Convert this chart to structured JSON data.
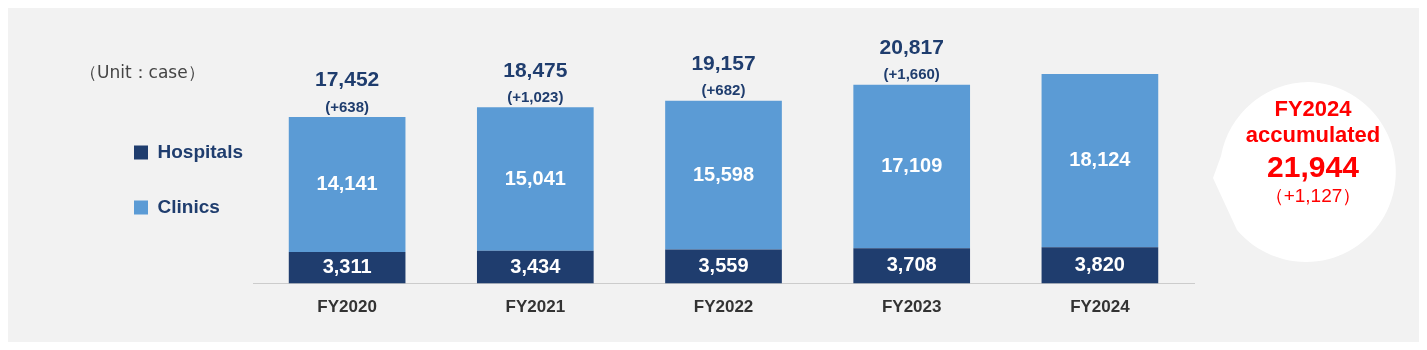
{
  "chart_data": {
    "type": "bar",
    "subtitle": "（Unit：case）",
    "categories": [
      "FY2020",
      "FY2021",
      "FY2022",
      "FY2023",
      "FY2024"
    ],
    "stacked": true,
    "series": [
      {
        "name": "Hospitals",
        "color": "#1f3d6e",
        "values": [
          3311,
          3434,
          3559,
          3708,
          3820
        ],
        "value_labels": [
          "3,311",
          "3,434",
          "3,559",
          "3,708",
          "3,820"
        ]
      },
      {
        "name": "Clinics",
        "color": "#5b9bd5",
        "values": [
          14141,
          15041,
          15598,
          17109,
          18124
        ],
        "value_labels": [
          "14,141",
          "15,041",
          "15,598",
          "17,109",
          "18,124"
        ]
      }
    ],
    "totals": [
      "17,452\n(+638)",
      "18,475\n(+1,023)",
      "19,157\n(+682)",
      "20,817\n(+1,660)",
      null
    ],
    "annotations": [
      "FY2024\naccumulated\n21,944\n（+1,127）"
    ],
    "legend": "left",
    "grid": false
  }
}
